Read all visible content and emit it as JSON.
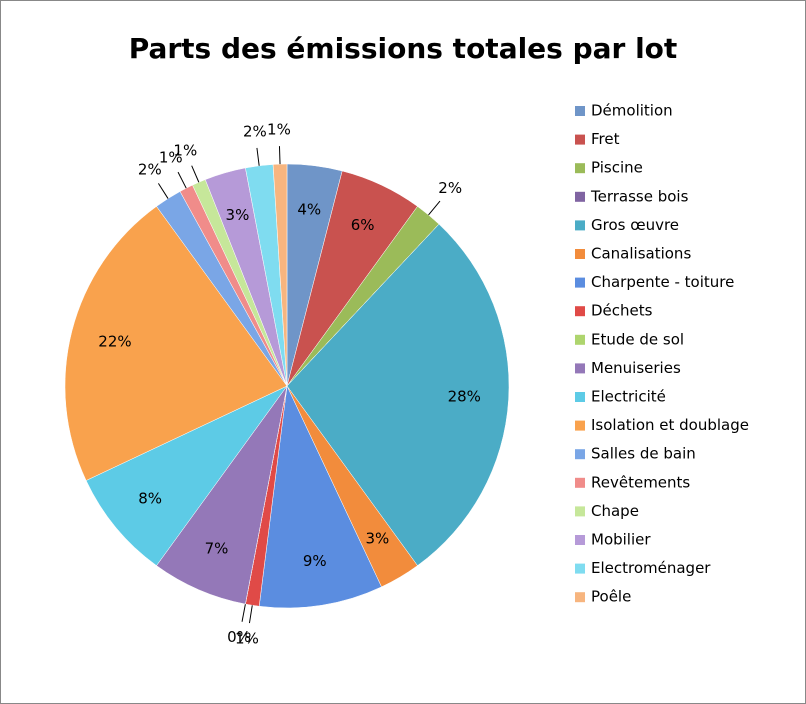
{
  "chart_data": {
    "type": "pie",
    "title": "Parts des émissions totales par lot",
    "categories": [
      "Démolition",
      "Fret",
      "Piscine",
      "Terrasse bois",
      "Gros œuvre",
      "Canalisations",
      "Charpente - toiture",
      "Déchets",
      "Etude de sol",
      "Menuiseries",
      "Electricité",
      "Isolation et doublage",
      "Salles de bain",
      "Revêtements",
      "Chape",
      "Mobilier",
      "Electroménager",
      "Poêle"
    ],
    "values": [
      4,
      6,
      2,
      0,
      28,
      3,
      9,
      1,
      0,
      7,
      8,
      22,
      2,
      1,
      1,
      3,
      2,
      1
    ],
    "value_labels": [
      "4%",
      "6%",
      "2%",
      null,
      "28%",
      "3%",
      "9%",
      "1%",
      "0%",
      "7%",
      "8%",
      "22%",
      "2%",
      "1%",
      "1%",
      "3%",
      "2%",
      "1%"
    ],
    "colors": [
      "#6f95c8",
      "#c9524f",
      "#9bbb59",
      "#8064a2",
      "#4bacc6",
      "#f28c3c",
      "#5b8de0",
      "#e04a47",
      "#aed56e",
      "#9478b8",
      "#5dcbe6",
      "#f9a24d",
      "#7aa6e6",
      "#f08c8a",
      "#c6e79a",
      "#b69ad8",
      "#7fdcf0",
      "#f7b57f"
    ],
    "legend": "right"
  }
}
